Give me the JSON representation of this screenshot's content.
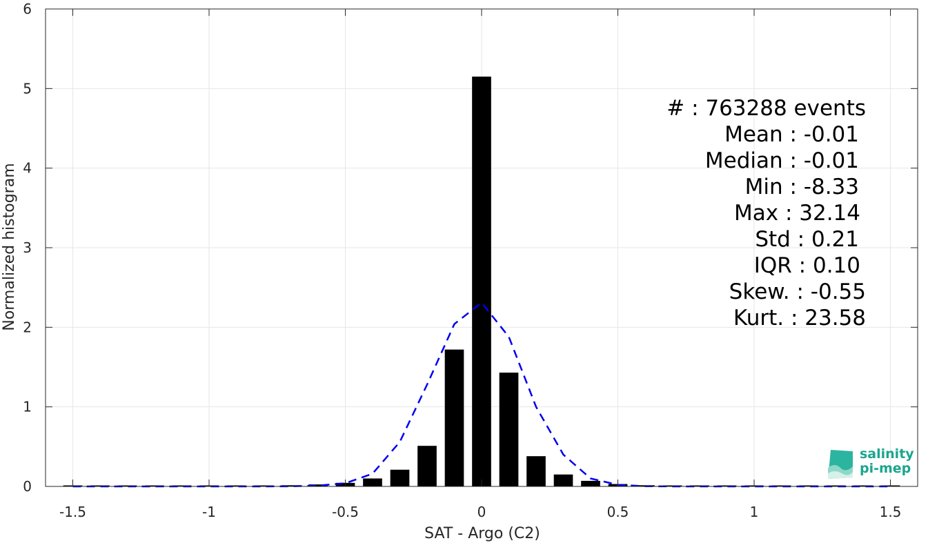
{
  "chart_data": {
    "type": "bar",
    "title": "",
    "xlabel": "SAT - Argo (C2)",
    "ylabel": "Normalized histogram",
    "xlim": [
      -1.6,
      1.6
    ],
    "ylim": [
      0,
      6
    ],
    "xticks": [
      -1.5,
      -1,
      -0.5,
      0,
      0.5,
      1,
      1.5
    ],
    "xtick_labels": [
      "-1.5",
      "-1",
      "-0.5",
      "0",
      "0.5",
      "1",
      "1.5"
    ],
    "yticks": [
      0,
      1,
      2,
      3,
      4,
      5,
      6
    ],
    "ytick_labels": [
      "0",
      "1",
      "2",
      "3",
      "4",
      "5",
      "6"
    ],
    "grid": true,
    "bar_width": 0.07,
    "x": [
      -1.5,
      -1.4,
      -1.3,
      -1.2,
      -1.1,
      -1.0,
      -0.9,
      -0.8,
      -0.7,
      -0.6,
      -0.5,
      -0.4,
      -0.3,
      -0.2,
      -0.1,
      0.0,
      0.1,
      0.2,
      0.3,
      0.4,
      0.5,
      0.6,
      0.7,
      0.8,
      0.9,
      1.0,
      1.1,
      1.2,
      1.3,
      1.4,
      1.5
    ],
    "values": [
      0.005,
      0.003,
      0.003,
      0.003,
      0.004,
      0.005,
      0.007,
      0.01,
      0.015,
      0.025,
      0.045,
      0.1,
      0.21,
      0.51,
      1.72,
      5.15,
      1.43,
      0.38,
      0.15,
      0.07,
      0.03,
      0.015,
      0.008,
      0.005,
      0.004,
      0.003,
      0.003,
      0.003,
      0.003,
      0.003,
      0.004
    ],
    "fit_curve": {
      "color": "#0000ee",
      "style": "dashed",
      "x": [
        -1.5,
        -1.4,
        -1.3,
        -1.2,
        -1.1,
        -1.0,
        -0.9,
        -0.8,
        -0.7,
        -0.6,
        -0.5,
        -0.4,
        -0.3,
        -0.2,
        -0.1,
        0.0,
        0.1,
        0.2,
        0.3,
        0.4,
        0.5,
        0.6,
        0.7,
        0.8,
        0.9,
        1.0,
        1.1,
        1.2,
        1.3,
        1.4,
        1.5
      ],
      "y": [
        0,
        0,
        0,
        0,
        0,
        0,
        0,
        0,
        0.002,
        0.01,
        0.04,
        0.16,
        0.56,
        1.28,
        2.04,
        2.31,
        1.88,
        1.0,
        0.4,
        0.1,
        0.02,
        0.003,
        0,
        0,
        0,
        0,
        0,
        0,
        0,
        0,
        0
      ]
    },
    "bar_color": "#000000"
  },
  "stats": {
    "lines": [
      "#  : 763288 events",
      "Mean : -0.01",
      "Median : -0.01",
      "Min : -8.33",
      "Max : 32.14",
      "Std : 0.21",
      "IQR : 0.10",
      "Skew. : -0.55",
      "Kurt. : 23.58"
    ]
  },
  "logo": {
    "line1": "salinity",
    "line2": "pi-mep",
    "color": "#1aa58e"
  }
}
